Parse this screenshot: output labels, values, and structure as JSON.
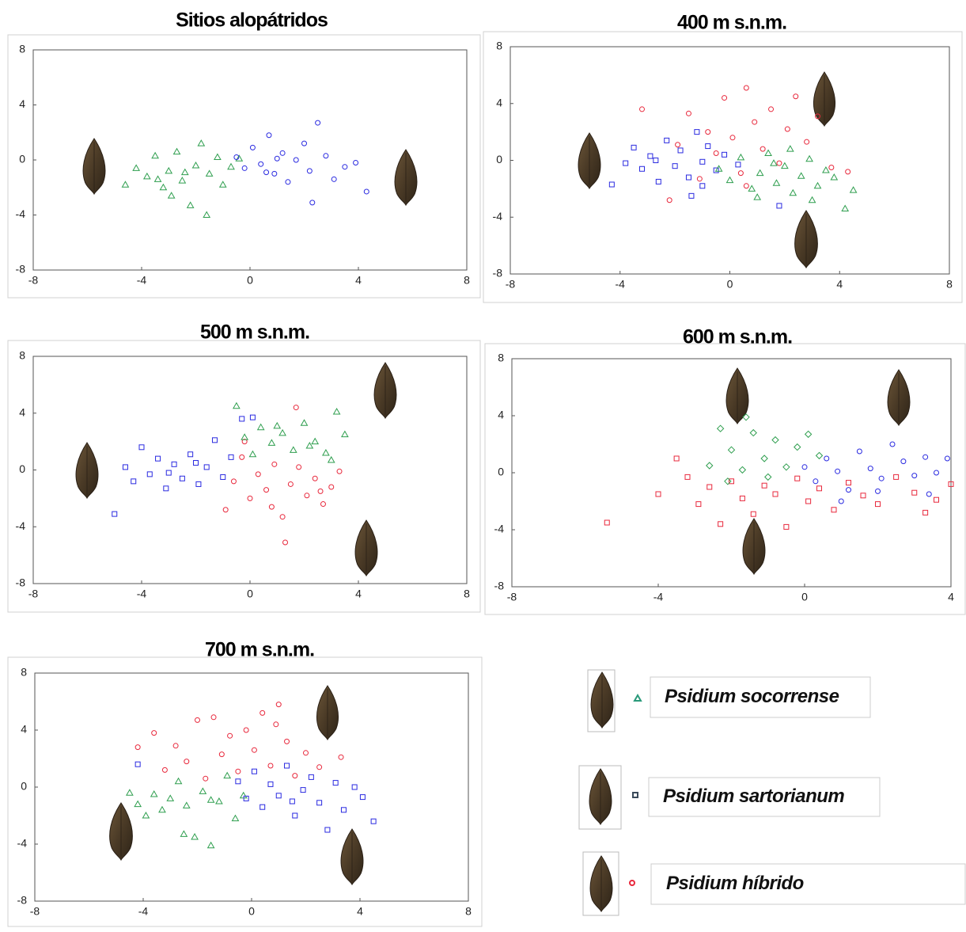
{
  "chart_data": [
    {
      "type": "scatter",
      "title": "Sitios alopátridos",
      "xlim": [
        -8,
        8
      ],
      "ylim": [
        -8,
        8
      ],
      "xticks": [
        -8,
        -4,
        0,
        4,
        8
      ],
      "yticks": [
        -8,
        -4,
        0,
        4,
        8
      ],
      "series": [
        {
          "color": "#2e9e4e",
          "marker": "triangle",
          "x": [
            -4.6,
            -4.2,
            -3.8,
            -3.5,
            -3.2,
            -3.0,
            -2.7,
            -2.5,
            -2.2,
            -2.0,
            -1.8,
            -1.5,
            -1.2,
            -1.0,
            -0.7,
            -0.4,
            -2.4,
            -1.6,
            -3.4,
            -2.9
          ],
          "y": [
            -1.8,
            -0.6,
            -1.2,
            0.3,
            -2.0,
            -0.8,
            0.6,
            -1.5,
            -3.3,
            -0.4,
            1.2,
            -1.0,
            0.2,
            -1.8,
            -0.5,
            0.1,
            -0.9,
            -4.0,
            -1.4,
            -2.6
          ]
        },
        {
          "color": "#2a2ae0",
          "marker": "circle",
          "x": [
            -0.5,
            -0.2,
            0.1,
            0.4,
            0.7,
            0.9,
            1.2,
            1.4,
            1.7,
            2.0,
            2.2,
            2.5,
            2.8,
            3.1,
            3.5,
            3.9,
            4.3,
            1.0,
            0.6,
            2.3
          ],
          "y": [
            0.2,
            -0.6,
            0.9,
            -0.3,
            1.8,
            -1.0,
            0.5,
            -1.6,
            0.0,
            1.2,
            -0.8,
            2.7,
            0.3,
            -1.4,
            -0.5,
            -0.2,
            -2.3,
            0.1,
            -0.9,
            -3.1
          ]
        }
      ]
    },
    {
      "type": "scatter",
      "title": "400 m s.n.m.",
      "xlim": [
        -8,
        8
      ],
      "ylim": [
        -8,
        8
      ],
      "xticks": [
        -8,
        -4,
        0,
        4,
        8
      ],
      "yticks": [
        -8,
        -4,
        0,
        4,
        8
      ],
      "series": [
        {
          "color": "#2a2ae0",
          "marker": "square",
          "x": [
            -4.3,
            -3.8,
            -3.5,
            -3.2,
            -2.9,
            -2.6,
            -2.3,
            -2.0,
            -1.8,
            -1.5,
            -1.2,
            -1.0,
            -0.8,
            -0.5,
            -0.2,
            0.3,
            -1.4,
            -2.7,
            1.8,
            -1.0
          ],
          "y": [
            -1.7,
            -0.2,
            0.9,
            -0.6,
            0.3,
            -1.5,
            1.4,
            -0.4,
            0.7,
            -1.2,
            2.0,
            -0.1,
            1.0,
            -0.7,
            0.4,
            -0.3,
            -2.5,
            0.0,
            -3.2,
            -1.8
          ]
        },
        {
          "color": "#2e9e4e",
          "marker": "triangle",
          "x": [
            -0.4,
            0.0,
            0.4,
            0.8,
            1.1,
            1.4,
            1.7,
            2.0,
            2.3,
            2.6,
            2.9,
            3.2,
            3.5,
            3.8,
            4.2,
            4.5,
            1.0,
            2.2,
            3.0,
            1.6
          ],
          "y": [
            -0.6,
            -1.4,
            0.2,
            -2.0,
            -0.9,
            0.5,
            -1.6,
            -0.4,
            -2.3,
            -1.1,
            0.1,
            -1.8,
            -0.7,
            -1.2,
            -3.4,
            -2.1,
            -2.6,
            0.8,
            -2.8,
            -0.2
          ]
        },
        {
          "color": "#e8283c",
          "marker": "circle",
          "x": [
            -2.2,
            -1.9,
            -1.5,
            -1.1,
            -0.8,
            -0.5,
            -0.2,
            0.1,
            0.4,
            0.6,
            0.9,
            1.2,
            1.5,
            1.8,
            2.1,
            2.4,
            2.8,
            3.2,
            3.7,
            -3.2,
            4.3,
            0.6
          ],
          "y": [
            -2.8,
            1.1,
            3.3,
            -1.3,
            2.0,
            0.5,
            4.4,
            1.6,
            -0.9,
            5.1,
            2.7,
            0.8,
            3.6,
            -0.2,
            2.2,
            4.5,
            1.3,
            3.1,
            -0.5,
            3.6,
            -0.8,
            -1.8
          ]
        }
      ]
    },
    {
      "type": "scatter",
      "title": "500 m s.n.m.",
      "xlim": [
        -8,
        8
      ],
      "ylim": [
        -8,
        8
      ],
      "xticks": [
        -8,
        -4,
        0,
        4,
        8
      ],
      "yticks": [
        -8,
        -4,
        0,
        4,
        8
      ],
      "series": [
        {
          "color": "#2a2ae0",
          "marker": "square",
          "x": [
            -5.0,
            -4.6,
            -4.3,
            -4.0,
            -3.7,
            -3.4,
            -3.1,
            -2.8,
            -2.5,
            -2.2,
            -1.9,
            -1.6,
            -1.3,
            -1.0,
            -0.7,
            -0.3,
            0.1,
            -3.0,
            -2.0
          ],
          "y": [
            -3.1,
            0.2,
            -0.8,
            1.6,
            -0.3,
            0.8,
            -1.3,
            0.4,
            -0.6,
            1.1,
            -1.0,
            0.2,
            2.1,
            -0.5,
            0.9,
            3.6,
            3.7,
            -0.2,
            0.5
          ]
        },
        {
          "color": "#e8283c",
          "marker": "circle",
          "x": [
            -0.9,
            -0.6,
            -0.3,
            0.0,
            0.3,
            0.6,
            0.9,
            1.2,
            1.5,
            1.8,
            2.1,
            2.4,
            2.7,
            3.0,
            3.3,
            1.3,
            0.8,
            1.7,
            -0.2,
            2.6
          ],
          "y": [
            -2.8,
            -0.8,
            0.9,
            -2.0,
            -0.3,
            -1.4,
            0.4,
            -3.3,
            -1.0,
            0.2,
            -1.8,
            -0.6,
            -2.4,
            -1.2,
            -0.1,
            -5.1,
            -2.6,
            4.4,
            2.0,
            -1.5
          ]
        },
        {
          "color": "#2e9e4e",
          "marker": "triangle",
          "x": [
            -0.5,
            -0.2,
            0.1,
            0.4,
            0.8,
            1.2,
            1.6,
            2.0,
            2.4,
            2.8,
            3.2,
            3.5,
            1.0,
            2.2,
            3.0
          ],
          "y": [
            4.5,
            2.3,
            1.1,
            3.0,
            1.9,
            2.6,
            1.4,
            3.3,
            2.0,
            1.2,
            4.1,
            2.5,
            3.1,
            1.7,
            0.7
          ]
        }
      ]
    },
    {
      "type": "scatter",
      "title": "600 m s.n.m.",
      "xlim": [
        -8,
        4
      ],
      "ylim": [
        -8,
        8
      ],
      "xticks": [
        -8,
        -4,
        0,
        4
      ],
      "yticks": [
        -8,
        -4,
        0,
        4,
        8
      ],
      "series": [
        {
          "color": "#e8283c",
          "marker": "square",
          "x": [
            -5.4,
            -4.0,
            -3.5,
            -3.2,
            -2.9,
            -2.6,
            -2.3,
            -2.0,
            -1.7,
            -1.4,
            -1.1,
            -0.8,
            -0.5,
            -0.2,
            0.1,
            0.4,
            0.8,
            1.2,
            1.6,
            2.0,
            2.5,
            3.0,
            3.3,
            3.6,
            4.0
          ],
          "y": [
            -3.5,
            -1.5,
            1.0,
            -0.3,
            -2.2,
            -1.0,
            -3.6,
            -0.6,
            -1.8,
            -2.9,
            -0.9,
            -1.5,
            -3.8,
            -0.4,
            -2.0,
            -1.1,
            -2.6,
            -0.7,
            -1.6,
            -2.2,
            -0.3,
            -1.4,
            -2.8,
            -1.9,
            -0.8
          ]
        },
        {
          "color": "#2e9e4e",
          "marker": "diamond",
          "x": [
            -2.6,
            -2.3,
            -2.0,
            -1.7,
            -1.4,
            -1.1,
            -0.8,
            -0.5,
            -0.2,
            0.1,
            0.4,
            -1.6,
            -1.0,
            -2.1
          ],
          "y": [
            0.5,
            3.1,
            1.6,
            0.2,
            2.8,
            1.0,
            2.3,
            0.4,
            1.8,
            2.7,
            1.2,
            3.9,
            -0.3,
            -0.6
          ]
        },
        {
          "color": "#2a2ae0",
          "marker": "circle",
          "x": [
            0.0,
            0.3,
            0.6,
            0.9,
            1.2,
            1.5,
            1.8,
            2.1,
            2.4,
            2.7,
            3.0,
            3.3,
            3.6,
            3.9,
            1.0,
            2.0,
            3.4
          ],
          "y": [
            0.4,
            -0.6,
            1.0,
            0.1,
            -1.2,
            1.5,
            0.3,
            -0.4,
            2.0,
            0.8,
            -0.2,
            1.1,
            0.0,
            1.0,
            -2.0,
            -1.3,
            -1.5
          ]
        }
      ]
    },
    {
      "type": "scatter",
      "title": "700 m s.n.m.",
      "xlim": [
        -8,
        8
      ],
      "ylim": [
        -8,
        8
      ],
      "xticks": [
        -8,
        -4,
        0,
        4,
        8
      ],
      "yticks": [
        -8,
        -4,
        0,
        4,
        8
      ],
      "series": [
        {
          "color": "#2e9e4e",
          "marker": "triangle",
          "x": [
            -4.5,
            -4.2,
            -3.9,
            -3.6,
            -3.3,
            -3.0,
            -2.7,
            -2.4,
            -2.1,
            -1.8,
            -1.5,
            -1.2,
            -0.9,
            -0.6,
            -0.3,
            -2.5,
            -1.5
          ],
          "y": [
            -0.4,
            -1.2,
            -2.0,
            -0.5,
            -1.6,
            -0.8,
            0.4,
            -1.3,
            -3.5,
            -0.3,
            -4.1,
            -1.0,
            0.8,
            -2.2,
            -0.6,
            -3.3,
            -0.9
          ]
        },
        {
          "color": "#e8283c",
          "marker": "circle",
          "x": [
            -4.2,
            -3.6,
            -3.2,
            -2.8,
            -2.4,
            -2.0,
            -1.7,
            -1.4,
            -1.1,
            -0.8,
            -0.5,
            -0.2,
            0.1,
            0.4,
            0.7,
            1.0,
            1.3,
            1.6,
            2.0,
            2.5,
            3.3,
            0.9
          ],
          "y": [
            2.8,
            3.8,
            1.2,
            2.9,
            1.8,
            4.7,
            0.6,
            4.9,
            2.3,
            3.6,
            1.1,
            4.0,
            2.6,
            5.2,
            1.5,
            5.8,
            3.2,
            0.8,
            2.4,
            1.4,
            2.1,
            4.4
          ]
        },
        {
          "color": "#2a2ae0",
          "marker": "square",
          "x": [
            -4.2,
            -0.5,
            -0.2,
            0.1,
            0.4,
            0.7,
            1.0,
            1.3,
            1.6,
            1.9,
            2.2,
            2.5,
            2.8,
            3.1,
            3.4,
            3.8,
            4.1,
            4.5,
            1.5
          ],
          "y": [
            1.6,
            0.4,
            -0.8,
            1.1,
            -1.4,
            0.2,
            -0.6,
            1.5,
            -2.0,
            -0.2,
            0.7,
            -1.1,
            -3.0,
            0.3,
            -1.6,
            0.0,
            -0.7,
            -2.4,
            -1.0
          ]
        }
      ]
    }
  ],
  "legend": [
    {
      "label": "Psidium socorrense",
      "marker": "triangle",
      "color": "#2a9a7a"
    },
    {
      "label": "Psidium sartorianum",
      "marker": "square",
      "color": "#3a4a5a"
    },
    {
      "label": "Psidium híbrido",
      "marker": "circle",
      "color": "#e8283c"
    }
  ]
}
